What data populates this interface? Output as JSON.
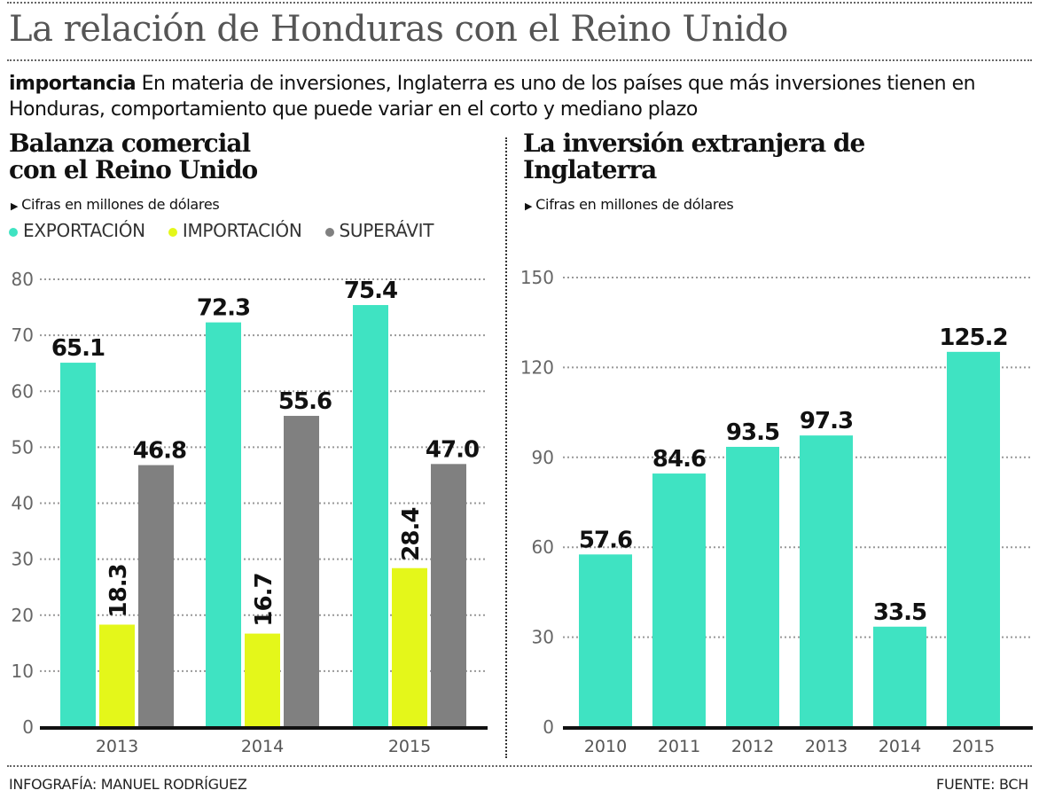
{
  "header": {
    "title": "La relación de Honduras con el Reino Unido",
    "intro_lead": "importancia",
    "intro_text": " En materia de inversiones, Inglaterra es uno de los países que más inversiones tienen en Honduras, comportamiento que puede variar en el corto y mediano plazo"
  },
  "colors": {
    "exportacion": "#3fe3c2",
    "importacion": "#e4f71a",
    "superavit": "#808080"
  },
  "chart_data": [
    {
      "type": "bar",
      "title": "Balanza comercial con el Reino Unido",
      "subtitle": "Cifras en millones de dólares",
      "categories": [
        "2013",
        "2014",
        "2015"
      ],
      "series": [
        {
          "name": "EXPORTACIÓN",
          "color": "#3fe3c2",
          "values": [
            65.1,
            72.3,
            75.4
          ],
          "labels": [
            "65.1",
            "72.3",
            "75.4"
          ]
        },
        {
          "name": "IMPORTACIÓN",
          "color": "#e4f71a",
          "values": [
            18.3,
            16.7,
            28.4
          ],
          "labels": [
            "18.3",
            "16.7",
            "28.4"
          ]
        },
        {
          "name": "SUPERÁVIT",
          "color": "#808080",
          "values": [
            46.8,
            55.6,
            47.0
          ],
          "labels": [
            "46.8",
            "55.6",
            "47.0"
          ]
        }
      ],
      "ylim": [
        0,
        80
      ],
      "yticks": [
        "0",
        "10",
        "20",
        "30",
        "40",
        "50",
        "60",
        "70",
        "80"
      ],
      "grid": true,
      "legend": "top-left"
    },
    {
      "type": "bar",
      "title": "La inversión extranjera de Inglaterra",
      "subtitle": "Cifras en millones de dólares",
      "categories": [
        "2010",
        "2011",
        "2012",
        "2013",
        "2014",
        "2015"
      ],
      "values": [
        57.6,
        84.6,
        93.5,
        97.3,
        33.5,
        125.2
      ],
      "labels": [
        "57.6",
        "84.6",
        "93.5",
        "97.3",
        "33.5",
        "125.2"
      ],
      "color": "#3fe3c2",
      "ylim": [
        0,
        150
      ],
      "yticks": [
        "0",
        "30",
        "60",
        "90",
        "120",
        "150"
      ],
      "grid": true
    }
  ],
  "footer": {
    "credit": "INFOGRAFÍA: MANUEL RODRÍGUEZ",
    "source": "FUENTE: BCH"
  }
}
